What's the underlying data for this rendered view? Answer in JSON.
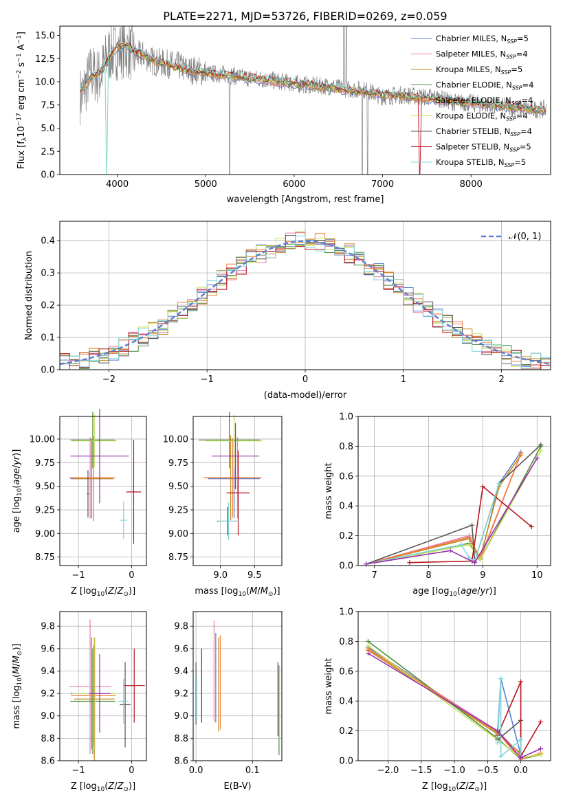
{
  "title": "PLATE=2271, MJD=53726, FIBERID=0269, z=0.059",
  "models": [
    {
      "name": "Chabrier MILES",
      "nssp": "5",
      "color": "#5b7fd1"
    },
    {
      "name": "Salpeter MILES",
      "nssp": "4",
      "color": "#e87ba9"
    },
    {
      "name": "Kroupa MILES",
      "nssp": "5",
      "color": "#c28a1e"
    },
    {
      "name": "Chabrier ELODIE",
      "nssp": "4",
      "color": "#4e8a3a"
    },
    {
      "name": "Salpeter ELODIE",
      "nssp": "4",
      "color": "#f2803a"
    },
    {
      "name": "Kroupa ELODIE",
      "nssp": "4",
      "color": "#c6e05a"
    },
    {
      "name": "Chabrier STELIB",
      "nssp": "4",
      "color": "#555555"
    },
    {
      "name": "Salpeter STELIB",
      "nssp": "5",
      "color": "#b5121b"
    },
    {
      "name": "Kroupa STELIB",
      "nssp": "5",
      "color": "#7fd6d9"
    }
  ],
  "chart_data": [
    {
      "id": "spectrum",
      "type": "line",
      "xlabel": "wavelength [Angstrom, rest frame]",
      "ylabel": "Flux [f_λ 10^-17 erg cm^-2 s^-1 A^-1]",
      "ylabel_parts": {
        "a": "Flux [f",
        "b": "λ",
        "c": "10",
        "d": "−17",
        "e": " erg cm",
        "f": "−2",
        "g": " s",
        "h": "−1",
        "i": " A",
        "j": "−1",
        "k": "]"
      },
      "xlim": [
        3350,
        8900
      ],
      "ylim": [
        0,
        16
      ],
      "xticks": [
        4000,
        5000,
        6000,
        7000,
        8000
      ],
      "yticks": [
        0.0,
        2.5,
        5.0,
        7.5,
        10.0,
        12.5,
        15.0
      ],
      "ytick_labels": [
        "0.0",
        "2.5",
        "5.0",
        "7.5",
        "10.0",
        "12.5",
        "15.0"
      ],
      "grid": false,
      "legend": "top-right",
      "data_color": "#808080",
      "data_series": {
        "name": "data",
        "x": [
          3600,
          3700,
          3800,
          3900,
          4000,
          4100,
          4200,
          4300,
          4400,
          4500,
          4600,
          4700,
          4800,
          4900,
          5000,
          5200,
          5400,
          5600,
          5800,
          6000,
          6200,
          6400,
          6600,
          6800,
          7000,
          7200,
          7400,
          7600,
          7800,
          8000,
          8200,
          8400,
          8600,
          8800
        ],
        "y": [
          8.5,
          11.0,
          10.5,
          13.0,
          13.3,
          13.5,
          12.8,
          12.9,
          12.2,
          12.0,
          11.9,
          11.7,
          11.2,
          11.3,
          10.9,
          10.8,
          10.5,
          10.3,
          10.1,
          9.8,
          9.6,
          9.5,
          9.2,
          9.1,
          8.4,
          8.6,
          8.4,
          8.3,
          7.8,
          7.7,
          7.5,
          7.3,
          7.1,
          7.0
        ]
      },
      "model_series": {
        "x": [
          3600,
          3700,
          3800,
          3900,
          4000,
          4100,
          4200,
          4300,
          4400,
          4500,
          4600,
          4700,
          4800,
          4900,
          5000,
          5200,
          5400,
          5600,
          5800,
          6000,
          6200,
          6400,
          6600,
          6800,
          7000,
          7200,
          7400,
          7600,
          7800,
          8000,
          8200,
          8400,
          8600,
          8800
        ],
        "y": [
          9.0,
          10.3,
          11.0,
          12.5,
          13.8,
          14.0,
          13.2,
          12.8,
          12.3,
          12.0,
          11.8,
          11.5,
          11.2,
          11.1,
          10.9,
          10.7,
          10.5,
          10.3,
          10.0,
          9.8,
          9.6,
          9.4,
          9.1,
          8.9,
          8.6,
          8.5,
          8.3,
          8.1,
          7.9,
          7.7,
          7.5,
          7.3,
          7.1,
          6.9
        ]
      }
    },
    {
      "id": "residuals",
      "type": "line",
      "xlabel": "(data-model)/error",
      "ylabel": "Normed distribution",
      "xlim": [
        -2.5,
        2.5
      ],
      "ylim": [
        0,
        0.46
      ],
      "xticks": [
        -2,
        -1,
        0,
        1,
        2
      ],
      "xtick_labels": [
        "−2",
        "−1",
        "0",
        "1",
        "2"
      ],
      "yticks": [
        0.0,
        0.1,
        0.2,
        0.3,
        0.4
      ],
      "ytick_labels": [
        "0.0",
        "0.1",
        "0.2",
        "0.3",
        "0.4"
      ],
      "grid": true,
      "legend": "top-right",
      "normal_label": "𝒩(0, 1)",
      "normal_color": "#5b7fd1",
      "bin_width": 0.1
    },
    {
      "id": "age-vs-Z",
      "type": "scatter",
      "xlabel": "Z [log10(Z/Z⊙)]",
      "ylabel": "age [log10(age/yr)]",
      "xlim": [
        -1.35,
        0.28
      ],
      "ylim": [
        8.66,
        10.24
      ],
      "xticks": [
        -1,
        0
      ],
      "xtick_labels": [
        "−1",
        "0"
      ],
      "yticks": [
        8.75,
        9.0,
        9.25,
        9.5,
        9.75,
        10.0
      ],
      "ytick_labels": [
        "8.75",
        "9.00",
        "9.25",
        "9.50",
        "9.75",
        "10.00"
      ],
      "grid": true,
      "points": [
        {
          "model": "Chabrier MILES",
          "x": -0.75,
          "xerr": 0.4,
          "y": 9.58,
          "yerr": 0.42
        },
        {
          "model": "Salpeter MILES",
          "x": -0.78,
          "xerr": 0.4,
          "y": 9.59,
          "yerr": 0.43
        },
        {
          "model": "Kroupa MILES",
          "x": -0.72,
          "xerr": 0.38,
          "y": 9.58,
          "yerr": 0.45
        },
        {
          "model": "Chabrier ELODIE",
          "x": -0.73,
          "xerr": 0.42,
          "y": 9.99,
          "yerr": 0.3
        },
        {
          "model": "Salpeter ELODIE",
          "x": -0.72,
          "xerr": 0.42,
          "y": 9.59,
          "yerr": 0.42
        },
        {
          "model": "Kroupa ELODIE",
          "x": -0.7,
          "xerr": 0.42,
          "y": 9.98,
          "yerr": 0.28
        },
        {
          "model": "Chabrier STELIB",
          "x": -0.82,
          "xerr": 0.02,
          "y": 9.42,
          "yerr": 0.25
        },
        {
          "model": "Salpeter STELIB",
          "x": 0.04,
          "xerr": 0.14,
          "y": 9.44,
          "yerr": 0.55
        },
        {
          "model": "Kroupa STELIB",
          "x": -0.15,
          "xerr": 0.07,
          "y": 9.14,
          "yerr": 0.2
        },
        {
          "model": "Kroupa ELODIE (2)",
          "x": -0.6,
          "xerr": 0.55,
          "y": 9.82,
          "yerr": 0.5
        }
      ]
    },
    {
      "id": "age-vs-mass",
      "type": "scatter",
      "xlabel": "mass [log10(M/M⊙)]",
      "xlim": [
        8.6,
        9.9
      ],
      "ylim": [
        8.66,
        10.24
      ],
      "xticks": [
        9.0,
        9.5
      ],
      "xtick_labels": [
        "9.0",
        "9.5"
      ],
      "yticks": [
        8.75,
        9.0,
        9.25,
        9.5,
        9.75,
        10.0
      ],
      "ytick_labels": [
        "8.75",
        "9.00",
        "9.25",
        "9.50",
        "9.75",
        "10.00"
      ],
      "grid": true,
      "points": [
        {
          "model": "Chabrier MILES",
          "x": 9.2,
          "xerr": 0.38,
          "y": 9.58,
          "yerr": 0.42
        },
        {
          "model": "Salpeter MILES",
          "x": 9.25,
          "xerr": 0.35,
          "y": 9.59,
          "yerr": 0.43
        },
        {
          "model": "Kroupa MILES",
          "x": 9.15,
          "xerr": 0.4,
          "y": 9.59,
          "yerr": 0.45
        },
        {
          "model": "Chabrier ELODIE",
          "x": 9.13,
          "xerr": 0.45,
          "y": 9.99,
          "yerr": 0.3
        },
        {
          "model": "Salpeter ELODIE",
          "x": 9.18,
          "xerr": 0.42,
          "y": 9.59,
          "yerr": 0.42
        },
        {
          "model": "Kroupa ELODIE",
          "x": 9.2,
          "xerr": 0.42,
          "y": 9.98,
          "yerr": 0.28
        },
        {
          "model": "Chabrier STELIB",
          "x": 9.1,
          "xerr": 0.15,
          "y": 9.13,
          "yerr": 0.15
        },
        {
          "model": "Salpeter STELIB",
          "x": 9.26,
          "xerr": 0.17,
          "y": 9.43,
          "yerr": 0.45
        },
        {
          "model": "Kroupa STELIB",
          "x": 9.12,
          "xerr": 0.15,
          "y": 9.13,
          "yerr": 0.2
        },
        {
          "model": "Kroupa ELODIE (2)",
          "x": 9.22,
          "xerr": 0.35,
          "y": 9.82,
          "yerr": 0.35
        }
      ]
    },
    {
      "id": "massweight-vs-age",
      "type": "line",
      "xlabel": "age [log10(age/yr)]",
      "ylabel": "mass weight",
      "xlim": [
        6.7,
        10.25
      ],
      "ylim": [
        0,
        1.0
      ],
      "xticks": [
        7,
        8,
        9,
        10
      ],
      "yticks": [
        0.0,
        0.2,
        0.4,
        0.6,
        0.8,
        1.0
      ],
      "ytick_labels": [
        "0.0",
        "0.2",
        "0.4",
        "0.6",
        "0.8",
        "1.0"
      ],
      "grid": true,
      "series": [
        {
          "model": "Chabrier MILES",
          "x": [
            6.85,
            8.75,
            8.95,
            9.3,
            9.7
          ],
          "y": [
            0.01,
            0.19,
            0.04,
            0.55,
            0.76
          ]
        },
        {
          "model": "Salpeter MILES",
          "x": [
            6.85,
            8.75,
            8.95,
            9.7
          ],
          "y": [
            0.01,
            0.2,
            0.04,
            0.75
          ]
        },
        {
          "model": "Kroupa MILES",
          "x": [
            6.85,
            8.75,
            8.95,
            9.3,
            9.7
          ],
          "y": [
            0.01,
            0.18,
            0.05,
            0.53,
            0.74
          ]
        },
        {
          "model": "Chabrier ELODIE",
          "x": [
            6.85,
            8.75,
            8.95,
            10.07
          ],
          "y": [
            0.01,
            0.15,
            0.04,
            0.8
          ]
        },
        {
          "model": "Salpeter ELODIE",
          "x": [
            6.85,
            8.75,
            8.95,
            9.7
          ],
          "y": [
            0.01,
            0.19,
            0.05,
            0.75
          ]
        },
        {
          "model": "Kroupa ELODIE",
          "x": [
            6.85,
            8.75,
            8.95,
            10.07
          ],
          "y": [
            0.01,
            0.14,
            0.04,
            0.77
          ]
        },
        {
          "model": "Chabrier STELIB",
          "x": [
            6.85,
            8.8,
            8.85,
            9.3,
            10.07
          ],
          "y": [
            0.01,
            0.27,
            0.03,
            0.55,
            0.81
          ]
        },
        {
          "model": "Salpeter STELIB",
          "x": [
            7.65,
            8.8,
            9.0,
            9.9
          ],
          "y": [
            0.02,
            0.03,
            0.53,
            0.26
          ]
        },
        {
          "model": "Kroupa STELIB",
          "x": [
            6.85,
            8.6,
            8.75,
            8.85,
            9.3
          ],
          "y": [
            0.01,
            0.14,
            0.05,
            0.03,
            0.55
          ]
        },
        {
          "model": "Kroupa ELODIE (2)",
          "x": [
            6.85,
            8.4,
            8.85,
            10.0
          ],
          "y": [
            0.01,
            0.1,
            0.02,
            0.72
          ]
        }
      ]
    },
    {
      "id": "mass-vs-Z",
      "type": "scatter",
      "xlabel": "Z [log10(Z/Z⊙)]",
      "ylabel": "mass [log10(M/M⊙)]",
      "xlim": [
        -1.35,
        0.28
      ],
      "ylim": [
        8.6,
        9.93
      ],
      "xticks": [
        -1,
        0
      ],
      "xtick_labels": [
        "−1",
        "0"
      ],
      "yticks": [
        8.6,
        8.8,
        9.0,
        9.2,
        9.4,
        9.6,
        9.8
      ],
      "ytick_labels": [
        "8.6",
        "8.8",
        "9.0",
        "9.2",
        "9.4",
        "9.6",
        "9.8"
      ],
      "grid": true,
      "points": [
        {
          "model": "Chabrier MILES",
          "x": -0.75,
          "xerr": 0.4,
          "y": 9.2,
          "yerr": 0.5
        },
        {
          "model": "Salpeter MILES",
          "x": -0.78,
          "xerr": 0.4,
          "y": 9.26,
          "yerr": 0.6
        },
        {
          "model": "Kroupa MILES",
          "x": -0.7,
          "xerr": 0.38,
          "y": 9.15,
          "yerr": 0.55
        },
        {
          "model": "Chabrier ELODIE",
          "x": -0.73,
          "xerr": 0.42,
          "y": 9.13,
          "yerr": 0.47
        },
        {
          "model": "Salpeter ELODIE",
          "x": -0.72,
          "xerr": 0.42,
          "y": 9.18,
          "yerr": 0.45
        },
        {
          "model": "Kroupa ELODIE",
          "x": -0.69,
          "xerr": 0.42,
          "y": 9.2,
          "yerr": 0.5
        },
        {
          "model": "Chabrier STELIB",
          "x": -0.12,
          "xerr": 0.1,
          "y": 9.1,
          "yerr": 0.38
        },
        {
          "model": "Salpeter STELIB",
          "x": 0.05,
          "xerr": 0.2,
          "y": 9.27,
          "yerr": 0.33
        },
        {
          "model": "Kroupa STELIB",
          "x": -0.15,
          "xerr": 0.1,
          "y": 9.13,
          "yerr": 0.2
        },
        {
          "model": "Kroupa ELODIE (2)",
          "x": -0.6,
          "xerr": 0.2,
          "y": 9.2,
          "yerr": 0.35
        }
      ]
    },
    {
      "id": "mass-vs-ebv",
      "type": "scatter",
      "xlabel": "E(B-V)",
      "xlim": [
        -0.005,
        0.152
      ],
      "ylim": [
        8.6,
        9.93
      ],
      "xticks": [
        0.0,
        0.1
      ],
      "xtick_labels": [
        "0.0",
        "0.1"
      ],
      "yticks": [
        8.6,
        8.8,
        9.0,
        9.2,
        9.4,
        9.6,
        9.8
      ],
      "ytick_labels": [
        "8.6",
        "8.8",
        "9.0",
        "9.2",
        "9.4",
        "9.6",
        "9.8"
      ],
      "grid": true,
      "points": [
        {
          "model": "Chabrier MILES",
          "x": 0.035,
          "y": 9.34,
          "yerr": 0.4
        },
        {
          "model": "Salpeter MILES",
          "x": 0.032,
          "y": 9.4,
          "yerr": 0.45
        },
        {
          "model": "Kroupa MILES",
          "x": 0.04,
          "y": 9.28,
          "yerr": 0.42
        },
        {
          "model": "Chabrier ELODIE",
          "x": 0.147,
          "y": 9.05,
          "yerr": 0.4
        },
        {
          "model": "Salpeter ELODIE",
          "x": 0.043,
          "y": 9.3,
          "yerr": 0.42
        },
        {
          "model": "Kroupa ELODIE",
          "x": 0.148,
          "y": 9.1,
          "yerr": 0.35
        },
        {
          "model": "Chabrier STELIB",
          "x": 0.0,
          "y": 9.2,
          "yerr": 0.28
        },
        {
          "model": "Salpeter STELIB",
          "x": 0.01,
          "y": 9.27,
          "yerr": 0.33
        },
        {
          "model": "Kroupa STELIB",
          "x": 0.001,
          "y": 9.15,
          "yerr": 0.2
        },
        {
          "model": "Kroupa ELODIE (2)",
          "x": 0.145,
          "y": 9.15,
          "yerr": 0.33
        }
      ]
    },
    {
      "id": "massweight-vs-Z",
      "type": "line",
      "xlabel": "Z [log10(Z/Z⊙)]",
      "ylabel": "mass weight",
      "xlim": [
        -2.45,
        0.45
      ],
      "ylim": [
        0,
        1.0
      ],
      "xticks": [
        -2.0,
        -1.5,
        -1.0,
        -0.5,
        0.0
      ],
      "xtick_labels": [
        "−2.0",
        "−1.5",
        "−1.0",
        "−0.5",
        "0.0"
      ],
      "yticks": [
        0.0,
        0.2,
        0.4,
        0.6,
        0.8,
        1.0
      ],
      "ytick_labels": [
        "0.0",
        "0.2",
        "0.4",
        "0.6",
        "0.8",
        "1.0"
      ],
      "grid": true,
      "series": [
        {
          "model": "Chabrier MILES",
          "x": [
            -2.3,
            -0.35,
            -0.3,
            0.0
          ],
          "y": [
            0.76,
            0.19,
            0.55,
            0.04
          ]
        },
        {
          "model": "Salpeter MILES",
          "x": [
            -2.3,
            -0.35,
            0.0
          ],
          "y": [
            0.75,
            0.2,
            0.04
          ]
        },
        {
          "model": "Kroupa MILES",
          "x": [
            -2.3,
            -0.35,
            0.0
          ],
          "y": [
            0.74,
            0.18,
            0.05
          ]
        },
        {
          "model": "Chabrier ELODIE",
          "x": [
            -2.3,
            -0.35,
            0.0,
            0.3
          ],
          "y": [
            0.8,
            0.15,
            0.01,
            0.04
          ]
        },
        {
          "model": "Salpeter ELODIE",
          "x": [
            -2.3,
            -0.35,
            0.0,
            0.3
          ],
          "y": [
            0.75,
            0.19,
            0.01,
            0.05
          ]
        },
        {
          "model": "Kroupa ELODIE",
          "x": [
            -2.3,
            -0.35,
            0.0,
            0.3
          ],
          "y": [
            0.77,
            0.14,
            0.02,
            0.04
          ]
        },
        {
          "model": "Chabrier STELIB",
          "x": [
            -0.35,
            0.0,
            0.0
          ],
          "y": [
            0.14,
            0.27,
            0.02
          ]
        },
        {
          "model": "Salpeter STELIB",
          "x": [
            -0.35,
            0.0,
            0.0,
            0.3
          ],
          "y": [
            0.17,
            0.53,
            0.03,
            0.26
          ]
        },
        {
          "model": "Kroupa STELIB",
          "x": [
            -0.35,
            -0.3,
            -0.3,
            0.0,
            0.0
          ],
          "y": [
            0.12,
            0.55,
            0.03,
            0.14,
            0.03
          ]
        },
        {
          "model": "Kroupa ELODIE (2)",
          "x": [
            -2.3,
            -0.35,
            0.0,
            0.3
          ],
          "y": [
            0.72,
            0.2,
            0.02,
            0.08
          ]
        }
      ]
    }
  ],
  "extra_color": "#9b2fae"
}
